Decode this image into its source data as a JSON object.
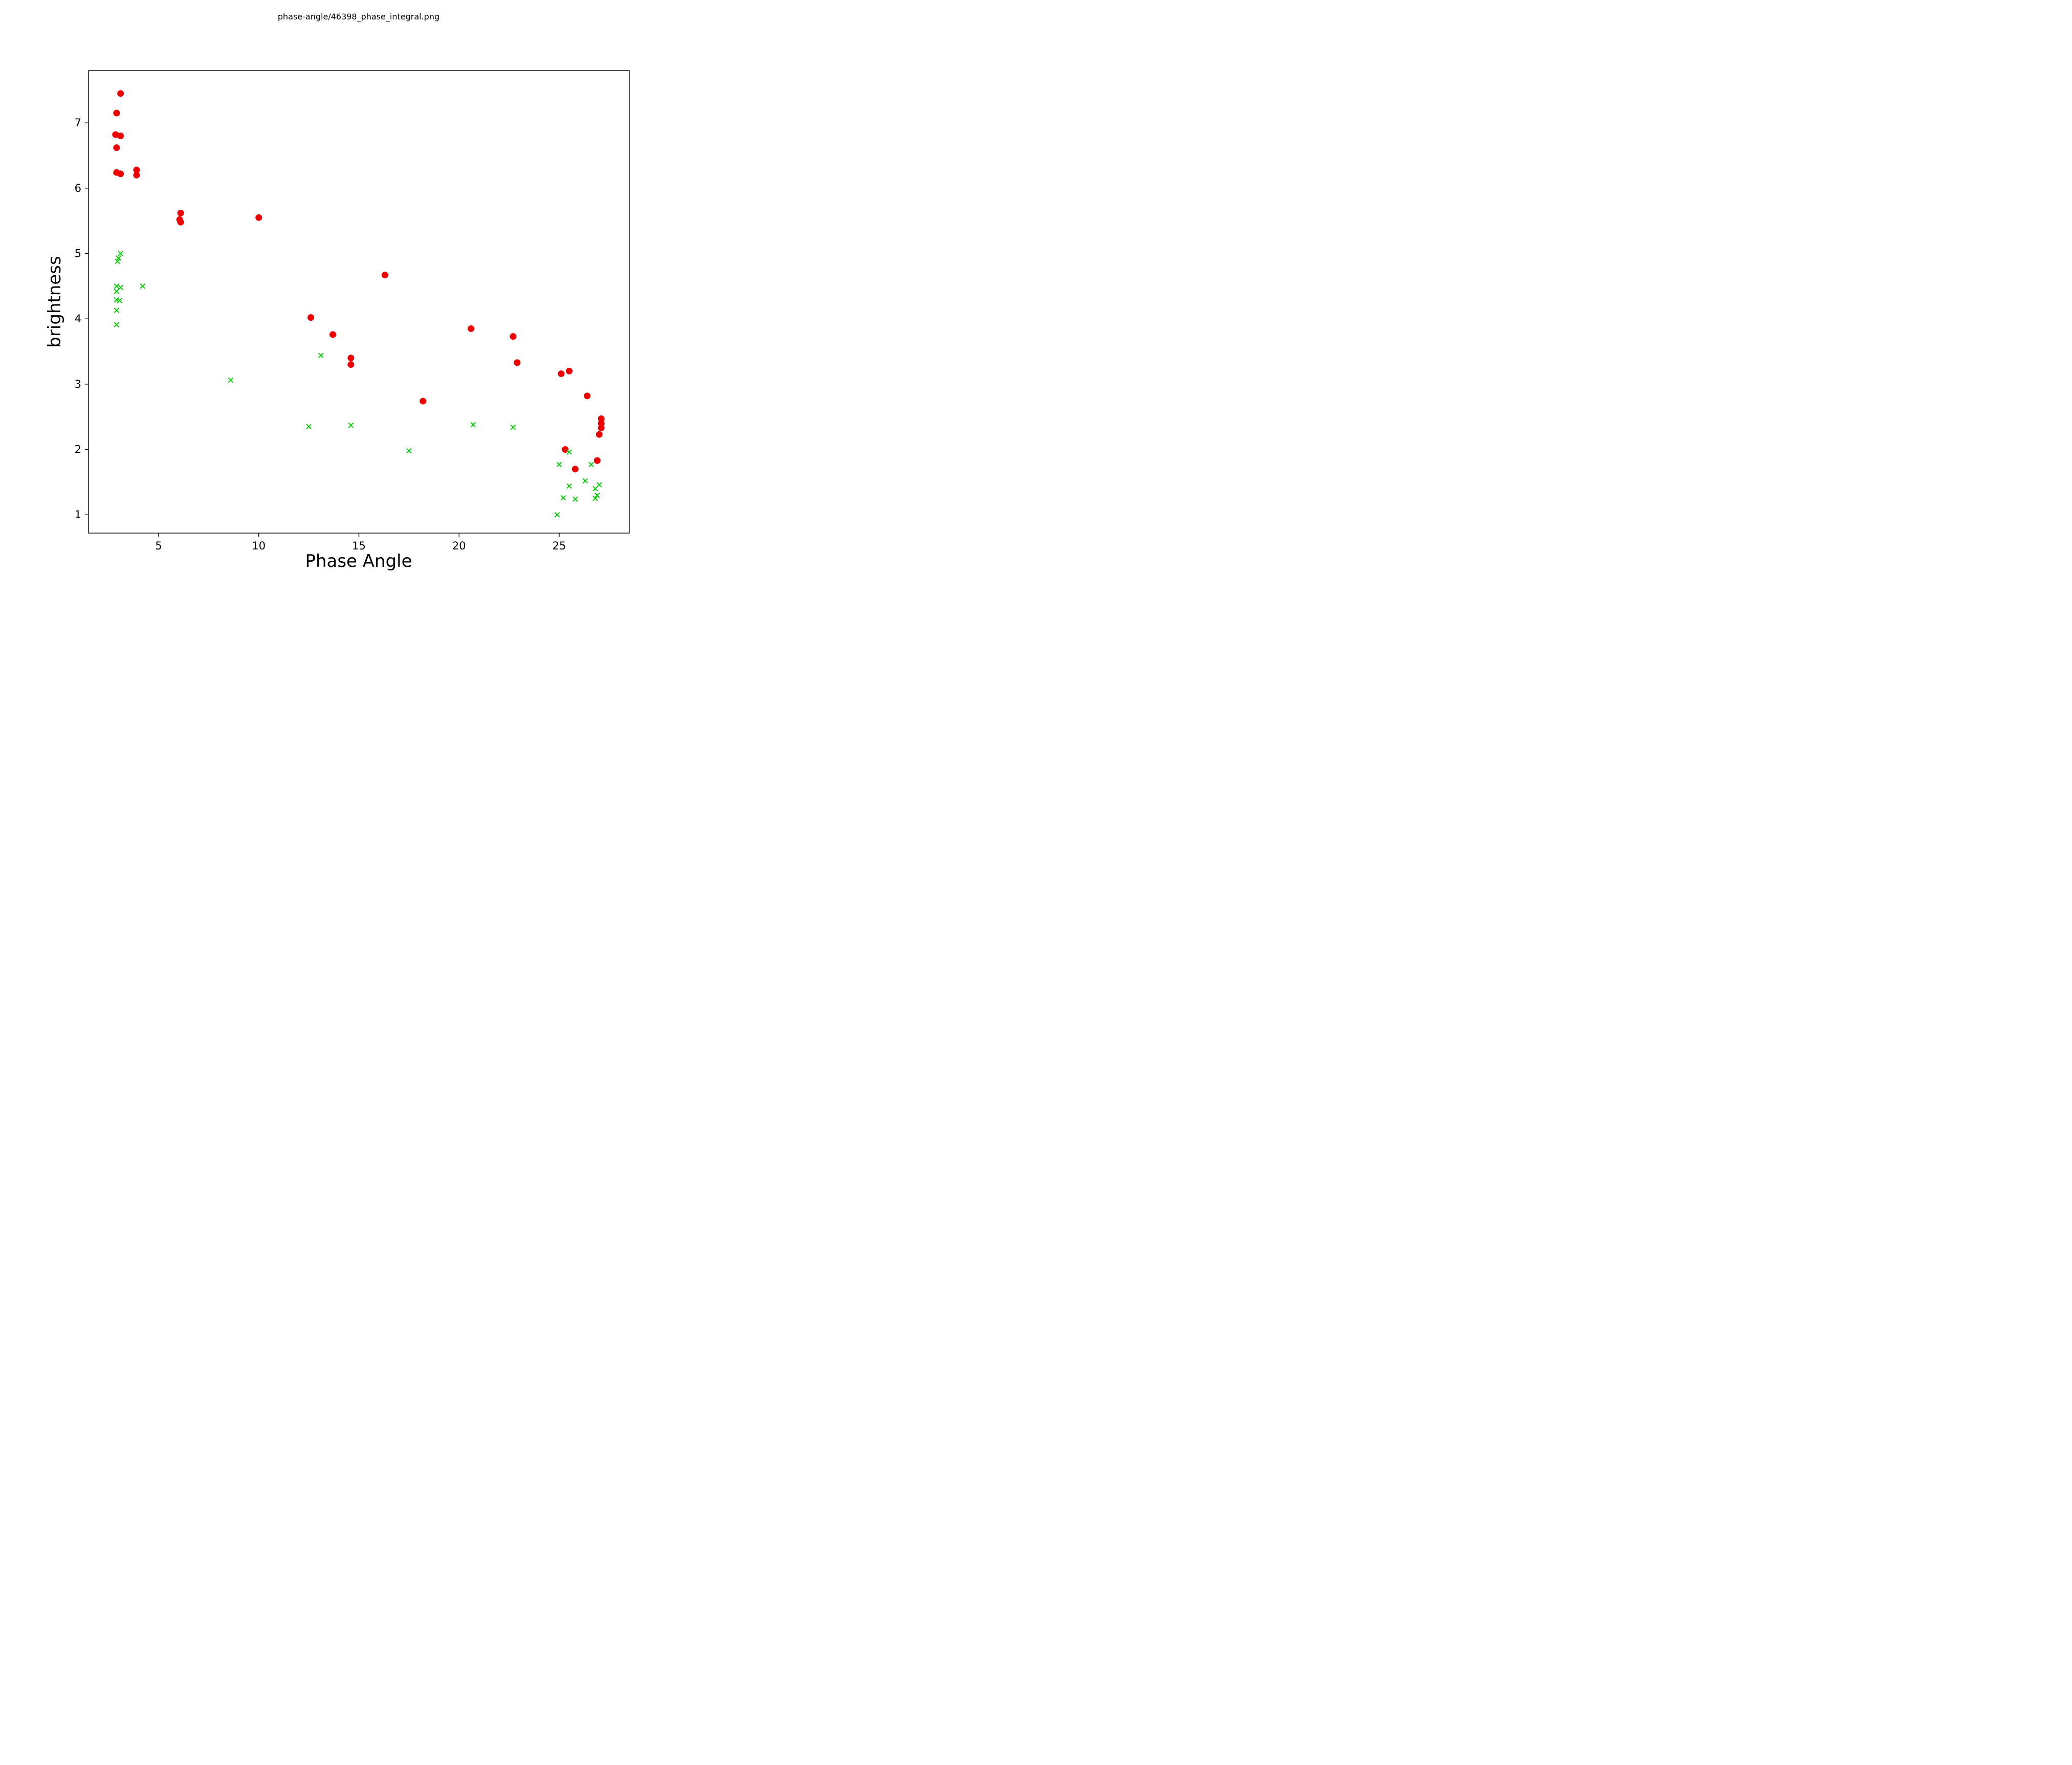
{
  "window_title": "phase-angle/46398_phase_integral.png",
  "chart_data": {
    "type": "scatter",
    "title": "phase-angle/46398_phase_integral.png",
    "xlabel": "Phase Angle",
    "ylabel": "brightness",
    "xlim": [
      1.5,
      28.5
    ],
    "ylim": [
      0.72,
      7.8
    ],
    "xticks": [
      5,
      10,
      15,
      20,
      25
    ],
    "yticks": [
      1,
      2,
      3,
      4,
      5,
      6,
      7
    ],
    "grid": false,
    "legend": "none",
    "series": [
      {
        "name": "red-circles",
        "marker": "circle",
        "color": "#ee0000",
        "points": [
          [
            3.1,
            7.45
          ],
          [
            2.9,
            7.15
          ],
          [
            2.85,
            6.82
          ],
          [
            3.1,
            6.8
          ],
          [
            2.9,
            6.62
          ],
          [
            2.9,
            6.24
          ],
          [
            3.1,
            6.22
          ],
          [
            3.9,
            6.28
          ],
          [
            3.9,
            6.2
          ],
          [
            6.1,
            5.62
          ],
          [
            6.05,
            5.52
          ],
          [
            6.1,
            5.48
          ],
          [
            10.0,
            5.55
          ],
          [
            16.3,
            4.67
          ],
          [
            12.6,
            4.02
          ],
          [
            13.7,
            3.76
          ],
          [
            14.6,
            3.4
          ],
          [
            14.6,
            3.3
          ],
          [
            18.2,
            2.74
          ],
          [
            20.6,
            3.85
          ],
          [
            22.7,
            3.73
          ],
          [
            22.9,
            3.33
          ],
          [
            25.1,
            3.16
          ],
          [
            25.5,
            3.2
          ],
          [
            26.4,
            2.82
          ],
          [
            27.1,
            2.47
          ],
          [
            27.1,
            2.4
          ],
          [
            27.1,
            2.33
          ],
          [
            27.0,
            2.23
          ],
          [
            25.3,
            2.0
          ],
          [
            25.8,
            1.7
          ],
          [
            26.9,
            1.83
          ]
        ]
      },
      {
        "name": "green-crosses",
        "marker": "x",
        "color": "#00cc00",
        "points": [
          [
            3.1,
            5.0
          ],
          [
            3.0,
            4.93
          ],
          [
            2.95,
            4.88
          ],
          [
            2.9,
            4.5
          ],
          [
            3.1,
            4.48
          ],
          [
            2.9,
            4.42
          ],
          [
            2.9,
            4.29
          ],
          [
            3.05,
            4.28
          ],
          [
            2.9,
            4.13
          ],
          [
            2.9,
            3.91
          ],
          [
            4.2,
            4.5
          ],
          [
            8.6,
            3.06
          ],
          [
            13.1,
            3.44
          ],
          [
            12.5,
            2.35
          ],
          [
            14.6,
            2.37
          ],
          [
            17.5,
            1.98
          ],
          [
            20.7,
            2.38
          ],
          [
            22.7,
            2.34
          ],
          [
            25.0,
            1.77
          ],
          [
            25.5,
            1.96
          ],
          [
            25.5,
            1.44
          ],
          [
            25.2,
            1.26
          ],
          [
            25.8,
            1.24
          ],
          [
            26.3,
            1.52
          ],
          [
            26.6,
            1.77
          ],
          [
            26.8,
            1.4
          ],
          [
            27.0,
            1.46
          ],
          [
            26.9,
            1.3
          ],
          [
            26.8,
            1.25
          ],
          [
            24.9,
            1.0
          ]
        ]
      }
    ]
  }
}
